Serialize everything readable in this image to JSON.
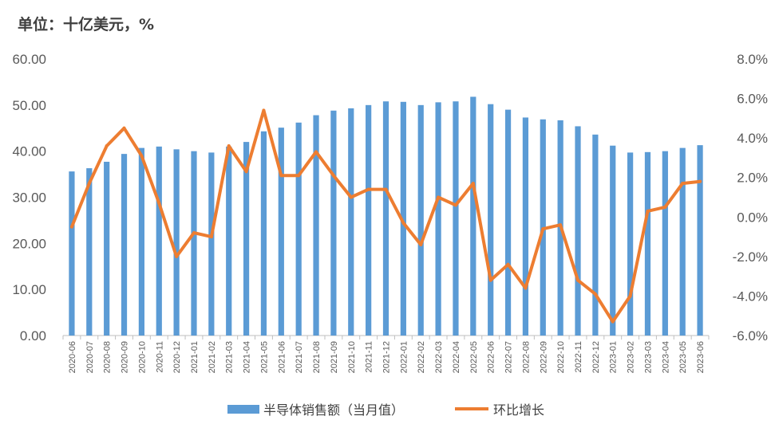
{
  "unit_label": "单位：十亿美元，%",
  "chart_data": {
    "type": "bar+line",
    "categories": [
      "2020-06",
      "2020-07",
      "2020-08",
      "2020-09",
      "2020-10",
      "2020-11",
      "2020-12",
      "2021-01",
      "2021-02",
      "2021-03",
      "2021-04",
      "2021-05",
      "2021-06",
      "2021-07",
      "2021-08",
      "2021-09",
      "2021-10",
      "2021-11",
      "2021-12",
      "2022-01",
      "2022-02",
      "2022-03",
      "2022-04",
      "2022-05",
      "2022-06",
      "2022-07",
      "2022-08",
      "2022-09",
      "2022-10",
      "2022-11",
      "2022-12",
      "2023-01",
      "2023-02",
      "2023-03",
      "2023-04",
      "2023-05",
      "2023-06"
    ],
    "series": [
      {
        "name": "半导体销售额（当月值）",
        "type": "bar",
        "axis": "left",
        "color": "#5b9bd5",
        "values": [
          35.6,
          36.3,
          37.7,
          39.4,
          40.7,
          41.0,
          40.4,
          40.0,
          39.7,
          41.0,
          42.0,
          44.3,
          45.1,
          46.2,
          47.8,
          48.8,
          49.3,
          50.0,
          50.8,
          50.7,
          50.0,
          50.6,
          50.8,
          51.8,
          50.2,
          49.0,
          47.3,
          46.9,
          46.7,
          45.4,
          43.6,
          41.2,
          39.7,
          39.8,
          40.0,
          40.7,
          41.3
        ]
      },
      {
        "name": "环比增长",
        "type": "line",
        "axis": "right",
        "color": "#ed7d31",
        "values": [
          -0.5,
          1.7,
          3.6,
          4.5,
          3.1,
          0.7,
          -2.0,
          -0.8,
          -1.0,
          3.6,
          2.3,
          5.4,
          2.1,
          2.1,
          3.3,
          2.1,
          1.0,
          1.4,
          1.4,
          -0.3,
          -1.4,
          1.0,
          0.6,
          1.7,
          -3.2,
          -2.4,
          -3.6,
          -0.6,
          -0.4,
          -3.2,
          -3.9,
          -5.3,
          -4.0,
          0.3,
          0.5,
          1.7,
          1.8
        ]
      }
    ],
    "y_left": {
      "min": 0,
      "max": 60,
      "step": 10,
      "tick_labels": [
        "0.00",
        "10.00",
        "20.00",
        "30.00",
        "40.00",
        "50.00",
        "60.00"
      ]
    },
    "y_right": {
      "min": -6,
      "max": 8,
      "step": 2,
      "tick_labels": [
        "-6.0%",
        "-4.0%",
        "-2.0%",
        "0.0%",
        "2.0%",
        "4.0%",
        "6.0%",
        "8.0%"
      ]
    },
    "grid": false,
    "legend_position": "bottom"
  }
}
